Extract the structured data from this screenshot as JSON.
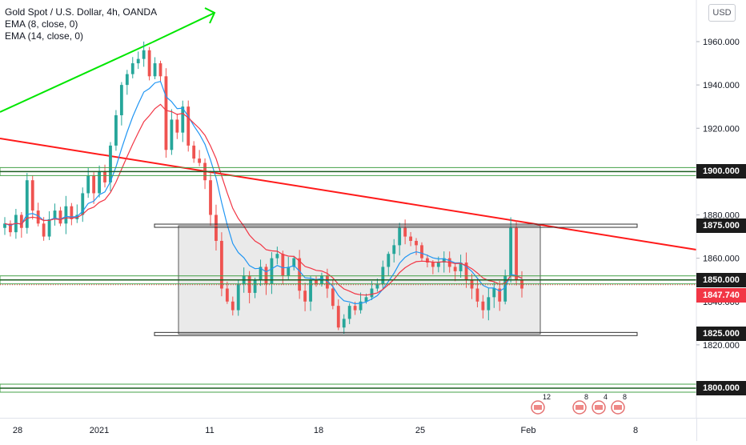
{
  "legend": {
    "title": "Gold Spot / U.S. Dollar, 4h, OANDA",
    "ema1": "EMA (8, close, 0)",
    "ema2": "EMA (14, close, 0)"
  },
  "currency_button": "USD",
  "price_axis": {
    "ticks": [
      "1960.000",
      "1940.000",
      "1920.000",
      "1880.000",
      "1860.000",
      "1840.000",
      "1820.000"
    ],
    "tick_values": [
      1960,
      1940,
      1920,
      1880,
      1860,
      1840,
      1820
    ]
  },
  "levels": [
    {
      "label": "1900.000",
      "value": 1900
    },
    {
      "label": "1875.000",
      "value": 1875
    },
    {
      "label": "1850.000",
      "value": 1850
    },
    {
      "label": "1825.000",
      "value": 1825
    },
    {
      "label": "1800.000",
      "value": 1800
    }
  ],
  "last_price": {
    "label": "1847.740",
    "value": 1847.74,
    "color": "#f23645"
  },
  "time_axis": {
    "labels": [
      "28",
      "2021",
      "11",
      "18",
      "25",
      "Feb",
      "8"
    ]
  },
  "event_badges": [
    "12",
    "8",
    "4",
    "8"
  ],
  "colors": {
    "up": "#26a69a",
    "down": "#ef5350",
    "ema_fast": "#2196f3",
    "ema_slow": "#f23645",
    "level_line": "#1b5e20",
    "level_band": "#43a047",
    "uptrend": "#00e600",
    "downtrend": "#ff1a1a",
    "range_box": "#e6e6e6"
  },
  "chart_data": {
    "type": "candlestick",
    "title": "Gold Spot / U.S. Dollar, 4h, OANDA",
    "ylim": [
      1798,
      1972
    ],
    "indicators": [
      "EMA (8, close, 0)",
      "EMA (14, close, 0)"
    ],
    "horizontal_levels": [
      1900,
      1875,
      1850,
      1825,
      1800
    ],
    "range_box": {
      "top": 1875,
      "bottom": 1825
    },
    "price_path": [
      1876,
      1872,
      1880,
      1874,
      1896,
      1882,
      1876,
      1870,
      1878,
      1882,
      1876,
      1884,
      1878,
      1880,
      1890,
      1898,
      1890,
      1900,
      1895,
      1912,
      1926,
      1940,
      1945,
      1950,
      1952,
      1956,
      1944,
      1950,
      1944,
      1910,
      1924,
      1918,
      1930,
      1912,
      1906,
      1904,
      1896,
      1880,
      1868,
      1846,
      1840,
      1836,
      1848,
      1852,
      1844,
      1850,
      1856,
      1848,
      1860,
      1862,
      1852,
      1856,
      1860,
      1845,
      1840,
      1850,
      1848,
      1852,
      1846,
      1838,
      1828,
      1832,
      1838,
      1836,
      1840,
      1842,
      1846,
      1848,
      1856,
      1862,
      1866,
      1874,
      1870,
      1868,
      1866,
      1860,
      1858,
      1856,
      1858,
      1860,
      1856,
      1854,
      1858,
      1850,
      1846,
      1840,
      1836,
      1842,
      1846,
      1840,
      1852,
      1874,
      1850,
      1846
    ]
  }
}
